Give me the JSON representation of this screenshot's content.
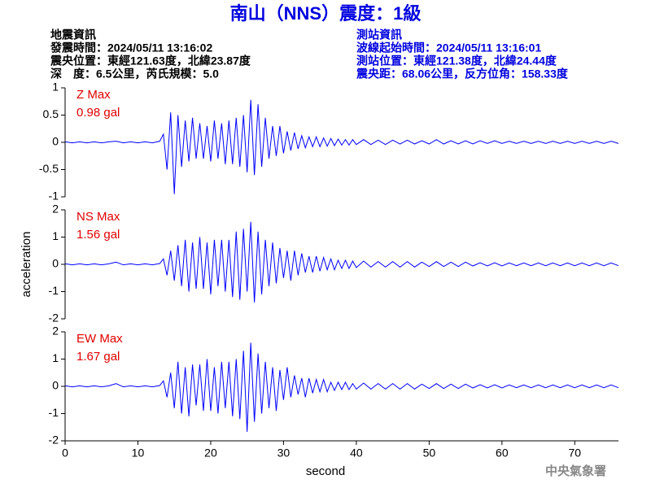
{
  "header": {
    "title": "南山（NNS）震度：1級",
    "left": [
      "地震資訊",
      "發震時間：2024/05/11 13:16:02",
      "震央位置：東經121.63度，北緯23.87度",
      "深　度：6.5公里，芮氏規模：5.0"
    ],
    "right": [
      "測站資訊",
      "波線起始時間：2024/05/11 13:16:01",
      "測站位置：東經121.38度，北緯24.44度",
      "震央距：68.06公里，反方位角：158.33度"
    ]
  },
  "footer": "中央氣象署",
  "chart_data": [
    {
      "type": "line",
      "label": "Z Max",
      "max_label": "0.98 gal",
      "color": "#0000ff",
      "xlim": [
        0,
        76
      ],
      "ylim": [
        -1,
        1
      ],
      "yticks": [
        -1,
        -0.5,
        0,
        0.5,
        1
      ],
      "x": [
        0,
        1,
        2,
        3,
        4,
        5,
        6,
        7,
        8,
        9,
        10,
        11,
        12,
        13,
        13.5,
        14,
        14.5,
        15,
        15.5,
        16,
        16.5,
        17,
        17.5,
        18,
        18.5,
        19,
        19.5,
        20,
        20.5,
        21,
        21.5,
        22,
        22.5,
        23,
        23.5,
        24,
        24.5,
        25,
        25.5,
        26,
        26.5,
        27,
        27.5,
        28,
        28.5,
        29,
        29.5,
        30,
        30.5,
        31,
        31.5,
        32,
        32.5,
        33,
        33.5,
        34,
        34.5,
        35,
        35.5,
        36,
        36.5,
        37,
        37.5,
        38,
        38.5,
        39,
        39.5,
        40,
        41,
        42,
        43,
        44,
        45,
        46,
        47,
        48,
        49,
        50,
        51,
        52,
        53,
        54,
        55,
        56,
        57,
        58,
        59,
        60,
        61,
        62,
        63,
        64,
        65,
        66,
        67,
        68,
        69,
        70,
        71,
        72,
        73,
        74,
        75,
        76
      ],
      "values": [
        0.01,
        -0.01,
        0.01,
        -0.01,
        0.01,
        -0.01,
        0.01,
        0.02,
        -0.01,
        0.01,
        -0.01,
        0.01,
        -0.01,
        0.02,
        0.15,
        -0.5,
        0.55,
        -0.95,
        0.5,
        -0.45,
        0.4,
        -0.35,
        0.45,
        -0.3,
        0.35,
        -0.3,
        0.3,
        -0.35,
        0.4,
        -0.3,
        0.35,
        -0.4,
        0.4,
        -0.4,
        0.45,
        -0.45,
        0.5,
        -0.55,
        0.78,
        -0.6,
        0.7,
        -0.45,
        0.45,
        -0.3,
        0.3,
        -0.25,
        0.3,
        -0.2,
        0.2,
        -0.15,
        0.18,
        -0.12,
        0.12,
        -0.1,
        0.1,
        -0.08,
        0.1,
        -0.08,
        0.08,
        -0.07,
        0.07,
        -0.06,
        0.06,
        -0.05,
        0.05,
        -0.05,
        0.05,
        -0.04,
        0.05,
        -0.04,
        0.04,
        -0.04,
        0.04,
        -0.03,
        0.04,
        -0.03,
        0.03,
        -0.03,
        0.05,
        -0.03,
        0.03,
        -0.03,
        0.03,
        -0.03,
        0.03,
        -0.02,
        0.03,
        -0.02,
        0.02,
        -0.02,
        0.02,
        -0.02,
        0.02,
        -0.02,
        0.02,
        -0.02,
        0.02,
        -0.02,
        0.02,
        -0.02,
        0.02,
        -0.02,
        0.02,
        -0.02
      ]
    },
    {
      "type": "line",
      "label": "NS Max",
      "max_label": "1.56 gal",
      "color": "#0000ff",
      "ylabel": "acceleration",
      "xlim": [
        0,
        76
      ],
      "ylim": [
        -2,
        2
      ],
      "yticks": [
        -2,
        -1,
        0,
        1,
        2
      ],
      "x": [
        0,
        1,
        2,
        3,
        4,
        5,
        6,
        7,
        8,
        9,
        10,
        11,
        12,
        13,
        13.5,
        14,
        14.5,
        15,
        15.5,
        16,
        16.5,
        17,
        17.5,
        18,
        18.5,
        19,
        19.5,
        20,
        20.5,
        21,
        21.5,
        22,
        22.5,
        23,
        23.5,
        24,
        24.5,
        25,
        25.5,
        26,
        26.5,
        27,
        27.5,
        28,
        28.5,
        29,
        29.5,
        30,
        30.5,
        31,
        31.5,
        32,
        32.5,
        33,
        33.5,
        34,
        34.5,
        35,
        35.5,
        36,
        36.5,
        37,
        37.5,
        38,
        38.5,
        39,
        39.5,
        40,
        41,
        42,
        43,
        44,
        45,
        46,
        47,
        48,
        49,
        50,
        51,
        52,
        53,
        54,
        55,
        56,
        57,
        58,
        59,
        60,
        61,
        62,
        63,
        64,
        65,
        66,
        67,
        68,
        69,
        70,
        71,
        72,
        73,
        74,
        75,
        76
      ],
      "values": [
        0.02,
        -0.02,
        0.02,
        -0.02,
        0.02,
        -0.02,
        0.02,
        0.08,
        -0.02,
        0.02,
        -0.02,
        0.02,
        -0.02,
        0.03,
        0.2,
        -0.4,
        0.5,
        -0.6,
        0.7,
        -0.8,
        0.9,
        -1.0,
        0.8,
        -0.9,
        1.0,
        -0.9,
        0.8,
        -1.1,
        0.9,
        -0.8,
        0.9,
        -1.0,
        0.9,
        -1.2,
        1.2,
        -1.3,
        1.3,
        -1.0,
        1.56,
        -1.4,
        1.2,
        -1.1,
        0.9,
        -0.8,
        0.8,
        -0.7,
        0.6,
        -0.5,
        0.5,
        -0.6,
        0.5,
        -0.4,
        0.4,
        -0.3,
        0.3,
        -0.3,
        0.3,
        -0.25,
        0.25,
        -0.2,
        0.2,
        -0.2,
        0.15,
        -0.15,
        0.15,
        -0.15,
        0.12,
        -0.12,
        0.12,
        -0.1,
        0.1,
        -0.1,
        0.1,
        -0.1,
        0.1,
        -0.1,
        0.08,
        -0.08,
        0.1,
        -0.08,
        0.08,
        -0.08,
        0.08,
        -0.06,
        0.06,
        -0.06,
        0.06,
        -0.06,
        0.05,
        -0.05,
        0.05,
        -0.05,
        0.05,
        -0.05,
        0.05,
        -0.05,
        0.05,
        -0.05,
        0.05,
        -0.05,
        0.05,
        -0.05,
        0.05,
        -0.05
      ]
    },
    {
      "type": "line",
      "label": "EW Max",
      "max_label": "1.67 gal",
      "color": "#0000ff",
      "xlabel": "second",
      "xlim": [
        0,
        76
      ],
      "xticks": [
        0,
        10,
        20,
        30,
        40,
        50,
        60,
        70
      ],
      "ylim": [
        -2,
        2
      ],
      "yticks": [
        -2,
        -1,
        0,
        1,
        2
      ],
      "x": [
        0,
        1,
        2,
        3,
        4,
        5,
        6,
        7,
        8,
        9,
        10,
        11,
        12,
        13,
        13.5,
        14,
        14.5,
        15,
        15.5,
        16,
        16.5,
        17,
        17.5,
        18,
        18.5,
        19,
        19.5,
        20,
        20.5,
        21,
        21.5,
        22,
        22.5,
        23,
        23.5,
        24,
        24.5,
        25,
        25.5,
        26,
        26.5,
        27,
        27.5,
        28,
        28.5,
        29,
        29.5,
        30,
        30.5,
        31,
        31.5,
        32,
        32.5,
        33,
        33.5,
        34,
        34.5,
        35,
        35.5,
        36,
        36.5,
        37,
        37.5,
        38,
        38.5,
        39,
        39.5,
        40,
        41,
        42,
        43,
        44,
        45,
        46,
        47,
        48,
        49,
        50,
        51,
        52,
        53,
        54,
        55,
        56,
        57,
        58,
        59,
        60,
        61,
        62,
        63,
        64,
        65,
        66,
        67,
        68,
        69,
        70,
        71,
        72,
        73,
        74,
        75,
        76
      ],
      "values": [
        0.02,
        -0.02,
        0.02,
        -0.02,
        0.02,
        -0.02,
        0.02,
        0.1,
        -0.02,
        0.02,
        -0.02,
        0.02,
        -0.02,
        0.03,
        0.2,
        -0.4,
        0.5,
        -0.8,
        0.9,
        -1.0,
        0.7,
        -1.1,
        0.8,
        -0.7,
        0.8,
        -0.9,
        1.0,
        -0.9,
        0.7,
        -1.0,
        0.9,
        -0.8,
        0.9,
        -1.1,
        1.0,
        -1.2,
        1.3,
        -1.67,
        1.6,
        -1.3,
        1.2,
        -1.0,
        0.9,
        -0.8,
        0.7,
        -0.9,
        0.6,
        -0.5,
        0.7,
        -0.4,
        0.4,
        -0.3,
        0.3,
        -0.4,
        0.3,
        -0.25,
        0.25,
        -0.2,
        0.25,
        -0.2,
        0.15,
        -0.15,
        0.15,
        -0.12,
        0.15,
        -0.12,
        0.1,
        -0.1,
        0.12,
        -0.1,
        0.1,
        -0.1,
        0.1,
        -0.1,
        0.1,
        -0.1,
        0.08,
        -0.08,
        0.1,
        -0.08,
        0.08,
        -0.08,
        0.08,
        -0.06,
        0.06,
        -0.06,
        0.06,
        -0.06,
        0.05,
        -0.05,
        0.05,
        -0.05,
        0.05,
        -0.05,
        0.05,
        -0.05,
        0.05,
        -0.05,
        0.05,
        -0.05,
        0.05,
        -0.05,
        0.05,
        -0.05
      ]
    }
  ]
}
